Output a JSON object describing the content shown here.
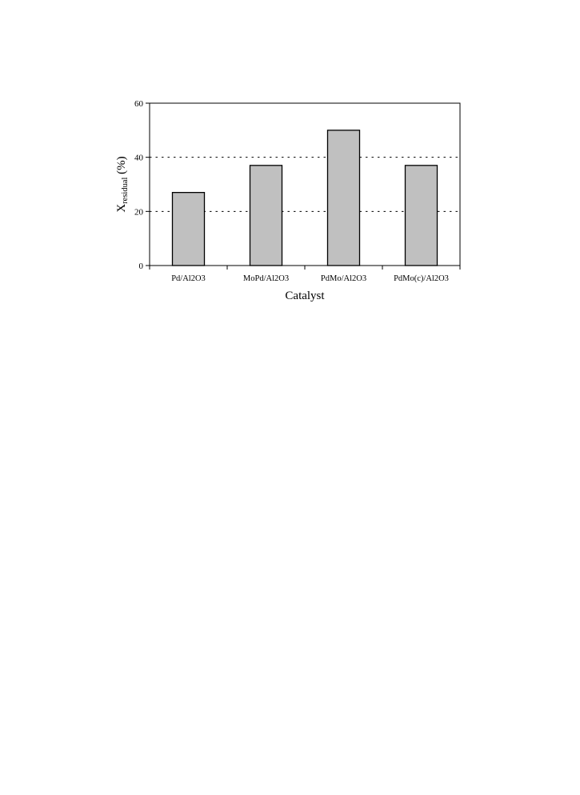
{
  "chart_data": {
    "type": "bar",
    "categories": [
      "Pd/Al2O3",
      "MoPd/Al2O3",
      "PdMo/Al2O3",
      "PdMo(c)/Al2O3"
    ],
    "values": [
      27,
      37,
      50,
      37
    ],
    "xlabel": "Catalyst",
    "ylabel": {
      "main": "X",
      "subscript": "residual",
      "unit": " (%)"
    },
    "ylim": [
      0,
      60
    ],
    "yticks": [
      0,
      20,
      40,
      60
    ],
    "grid": {
      "horizontal": true,
      "style": "dotted",
      "values": [
        20,
        40
      ]
    },
    "colors": {
      "bar_fill": "#c0c0c0",
      "bar_stroke": "#000000",
      "axis": "#000000",
      "grid": "#000000"
    }
  }
}
